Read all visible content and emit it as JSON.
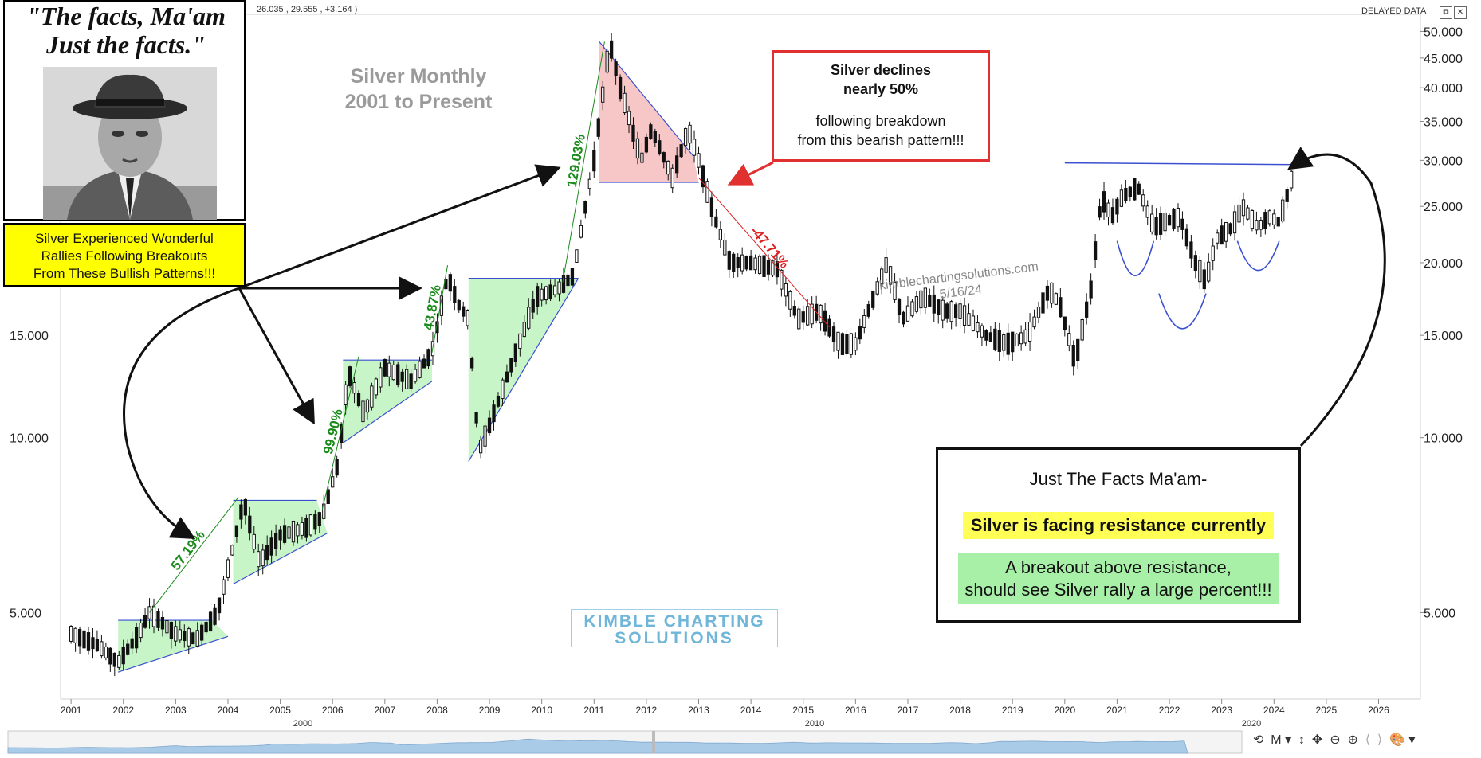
{
  "header": {
    "ohlc_readout": "26.035 ,  29.555 ,  +3.164 )",
    "delayed_label": "DELAYED DATA",
    "restore_icon": "restore-icon",
    "close_icon": "close-icon"
  },
  "quote_panel": {
    "line1": "\"The facts, Ma'am",
    "line2": "Just the facts.\"",
    "photo_icon": "man-in-fedora-photo"
  },
  "yellow_note": {
    "lines": [
      "Silver Experienced Wonderful",
      "Rallies Following Breakouts",
      "From These Bullish Patterns!!!"
    ]
  },
  "chart_title": {
    "line1": "Silver Monthly",
    "line2": "2001 to Present"
  },
  "bearish_note": {
    "line1": "Silver declines",
    "line2": "nearly 50%",
    "line3": "following breakdown",
    "line4": "from this bearish pattern!!!"
  },
  "facts_box": {
    "heading": "Just The Facts Ma'am-",
    "highlight": "Silver is facing resistance currently",
    "line1": "A breakout above resistance,",
    "line2": "should see Silver rally a large percent!!!"
  },
  "watermark": {
    "line1": "kimblechartingsolutions.com",
    "line2": "5/16/24"
  },
  "logo": {
    "line1": "KIMBLE CHARTING",
    "line2": "SOLUTIONS"
  },
  "toolbar": {
    "items": [
      "⟲",
      "M ▾",
      "↕",
      "✥",
      "⊖",
      "⊕",
      "⟨",
      "⟩",
      "🎨 ▾"
    ]
  },
  "colors": {
    "bullish_fill": "#c8f5c8",
    "bearish_fill": "#f7c7c7",
    "pattern_line": "#3a50d0",
    "gain_label": "#1a8a1a",
    "decline_label": "#dd2020",
    "candle": "#111111"
  },
  "chart_data": {
    "type": "candlestick",
    "title": "Silver Monthly 2001 to Present",
    "x_axis": {
      "range": [
        2000.8,
        2026.8
      ],
      "tick_labels": [
        "2001",
        "2002",
        "2003",
        "2004",
        "2005",
        "2006",
        "2007",
        "2008",
        "2009",
        "2010",
        "2011",
        "2012",
        "2013",
        "2014",
        "2015",
        "2016",
        "2017",
        "2018",
        "2019",
        "2020",
        "2021",
        "2022",
        "2023",
        "2024",
        "2025",
        "2026"
      ],
      "navigator_labels": [
        "2000",
        "2010",
        "2020"
      ]
    },
    "y_axis": {
      "scale": "log",
      "range": [
        3.55,
        53.5
      ],
      "tick_labels": [
        "50.000",
        "45.000",
        "40.000",
        "35.000",
        "30.000",
        "25.000",
        "20.000",
        "15.000",
        "10.000",
        "5.000"
      ],
      "tick_values": [
        50,
        45,
        40,
        35,
        30,
        25,
        20,
        15,
        10,
        5
      ]
    },
    "price_path": [
      [
        2001.0,
        4.6
      ],
      [
        2001.5,
        4.4
      ],
      [
        2001.9,
        4.1
      ],
      [
        2002.3,
        4.6
      ],
      [
        2002.5,
        5.0
      ],
      [
        2003.0,
        4.6
      ],
      [
        2003.4,
        4.5
      ],
      [
        2003.8,
        5.0
      ],
      [
        2004.1,
        6.5
      ],
      [
        2004.3,
        7.8
      ],
      [
        2004.6,
        6.1
      ],
      [
        2005.0,
        6.8
      ],
      [
        2005.5,
        7.0
      ],
      [
        2005.8,
        7.3
      ],
      [
        2006.1,
        9.0
      ],
      [
        2006.3,
        13.0
      ],
      [
        2006.6,
        11.0
      ],
      [
        2007.0,
        13.2
      ],
      [
        2007.5,
        12.5
      ],
      [
        2007.9,
        14.0
      ],
      [
        2008.2,
        19.0
      ],
      [
        2008.4,
        17.0
      ],
      [
        2008.6,
        16.0
      ],
      [
        2008.8,
        9.5
      ],
      [
        2009.0,
        10.5
      ],
      [
        2009.5,
        14.0
      ],
      [
        2009.9,
        17.5
      ],
      [
        2010.3,
        18.0
      ],
      [
        2010.6,
        19.0
      ],
      [
        2010.8,
        24.0
      ],
      [
        2011.0,
        30.0
      ],
      [
        2011.3,
        48.0
      ],
      [
        2011.5,
        40.0
      ],
      [
        2011.9,
        30.0
      ],
      [
        2012.1,
        34.0
      ],
      [
        2012.5,
        28.0
      ],
      [
        2012.8,
        34.0
      ],
      [
        2013.0,
        30.0
      ],
      [
        2013.3,
        24.0
      ],
      [
        2013.6,
        20.0
      ],
      [
        2014.0,
        20.0
      ],
      [
        2014.5,
        19.5
      ],
      [
        2014.9,
        16.0
      ],
      [
        2015.3,
        16.5
      ],
      [
        2015.7,
        14.5
      ],
      [
        2016.0,
        14.5
      ],
      [
        2016.3,
        17.0
      ],
      [
        2016.6,
        20.0
      ],
      [
        2016.9,
        16.0
      ],
      [
        2017.3,
        17.5
      ],
      [
        2017.7,
        16.5
      ],
      [
        2018.0,
        16.5
      ],
      [
        2018.5,
        15.0
      ],
      [
        2018.9,
        14.5
      ],
      [
        2019.3,
        15.0
      ],
      [
        2019.7,
        18.0
      ],
      [
        2019.9,
        17.0
      ],
      [
        2020.2,
        13.5
      ],
      [
        2020.5,
        18.0
      ],
      [
        2020.7,
        26.0
      ],
      [
        2020.9,
        24.0
      ],
      [
        2021.1,
        26.0
      ],
      [
        2021.4,
        27.0
      ],
      [
        2021.7,
        23.0
      ],
      [
        2021.9,
        23.5
      ],
      [
        2022.2,
        24.0
      ],
      [
        2022.5,
        20.0
      ],
      [
        2022.7,
        18.5
      ],
      [
        2022.9,
        22.0
      ],
      [
        2023.2,
        23.0
      ],
      [
        2023.4,
        25.0
      ],
      [
        2023.7,
        23.0
      ],
      [
        2023.9,
        24.0
      ],
      [
        2024.1,
        23.5
      ],
      [
        2024.3,
        27.0
      ],
      [
        2024.4,
        29.5
      ]
    ],
    "bullish_patterns": [
      {
        "x": [
          2001.9,
          2003.7,
          2004.0,
          2001.9
        ],
        "y": [
          4.85,
          4.85,
          4.55,
          3.95
        ]
      },
      {
        "x": [
          2004.1,
          2005.7,
          2005.9,
          2004.1
        ],
        "y": [
          7.8,
          7.8,
          6.85,
          5.6
        ]
      },
      {
        "x": [
          2006.2,
          2007.9,
          2007.9,
          2006.2
        ],
        "y": [
          13.6,
          13.6,
          12.5,
          9.8
        ]
      },
      {
        "x": [
          2008.6,
          2010.7,
          2010.7,
          2008.6
        ],
        "y": [
          18.8,
          18.8,
          18.8,
          9.1
        ]
      }
    ],
    "bearish_pattern": {
      "x": [
        2011.1,
        2012.9,
        2013.0,
        2011.1
      ],
      "y": [
        48.0,
        30.5,
        27.5,
        27.5
      ]
    },
    "resistance_line": {
      "x": [
        2020.0,
        2024.4
      ],
      "y": [
        29.7,
        29.5
      ]
    },
    "cup_arcs": [
      {
        "x": [
          2021.0,
          2021.7
        ],
        "y_top": 21.8,
        "y_bottom": 19.0
      },
      {
        "x": [
          2021.8,
          2022.7
        ],
        "y_top": 17.7,
        "y_bottom": 15.4
      },
      {
        "x": [
          2023.3,
          2024.1
        ],
        "y_top": 21.8,
        "y_bottom": 19.4
      }
    ],
    "annotations": [
      {
        "text": "57.19%",
        "from": [
          2002.5,
          5.0
        ],
        "to": [
          2004.2,
          7.9
        ]
      },
      {
        "text": "99.90%",
        "from": [
          2005.8,
          7.5
        ],
        "to": [
          2006.5,
          13.8
        ]
      },
      {
        "text": "43.87%",
        "from": [
          2007.9,
          14.0
        ],
        "to": [
          2008.2,
          19.8
        ]
      },
      {
        "text": "129.03%",
        "from": [
          2010.4,
          18.5
        ],
        "to": [
          2011.2,
          48.0
        ]
      },
      {
        "text": "-47.71%",
        "from": [
          2013.0,
          28.0
        ],
        "to": [
          2015.5,
          15.5
        ]
      }
    ]
  }
}
